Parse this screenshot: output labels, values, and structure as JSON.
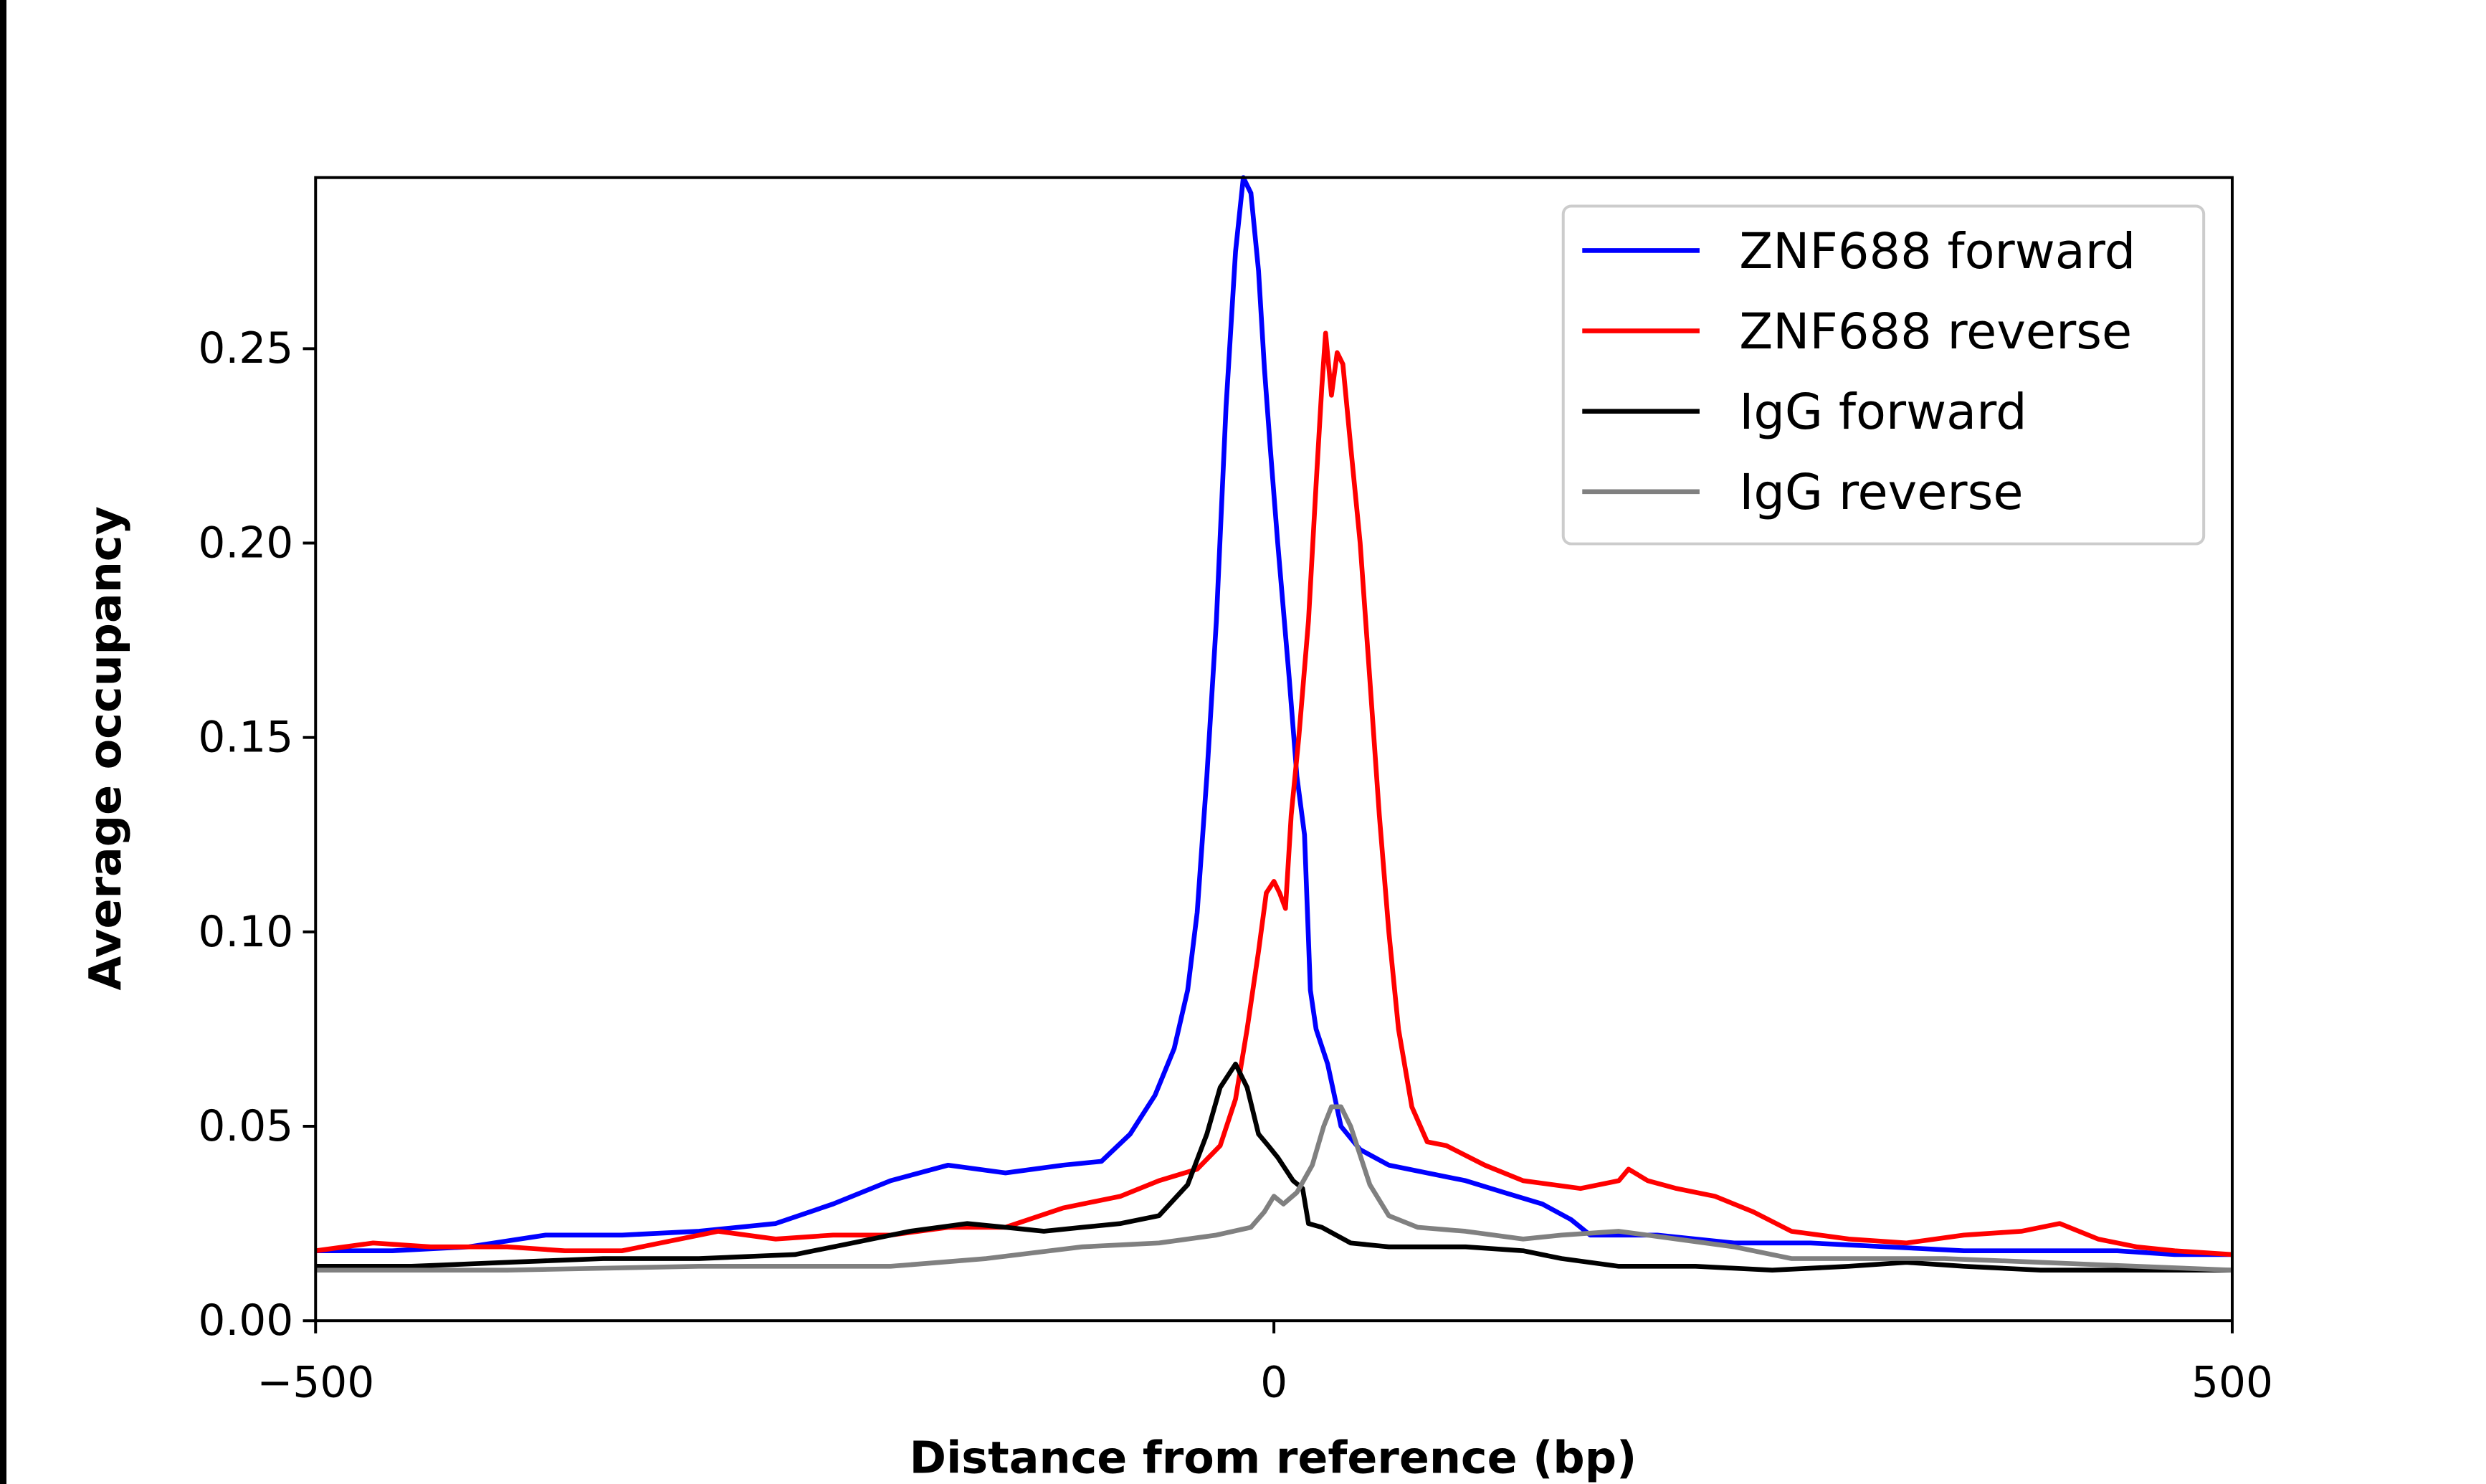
{
  "chart_data": {
    "type": "line",
    "xlabel": "Distance from reference (bp)",
    "ylabel": "Average occupancy",
    "xlim": [
      -500,
      500
    ],
    "ylim": [
      0,
      0.294
    ],
    "xticks": [
      "−500",
      "0",
      "500"
    ],
    "xtick_values": [
      -500,
      0,
      500
    ],
    "yticks": [
      "0.00",
      "0.05",
      "0.10",
      "0.15",
      "0.20",
      "0.25"
    ],
    "ytick_values": [
      0,
      0.05,
      0.1,
      0.15,
      0.2,
      0.25
    ],
    "grid": false,
    "legend_position": "top-right",
    "series": [
      {
        "name": "ZNF688 forward",
        "color": "#0000ff",
        "points": [
          [
            -500,
            0.018
          ],
          [
            -460,
            0.018
          ],
          [
            -420,
            0.019
          ],
          [
            -380,
            0.022
          ],
          [
            -340,
            0.022
          ],
          [
            -300,
            0.023
          ],
          [
            -260,
            0.025
          ],
          [
            -230,
            0.03
          ],
          [
            -200,
            0.036
          ],
          [
            -170,
            0.04
          ],
          [
            -140,
            0.038
          ],
          [
            -110,
            0.04
          ],
          [
            -90,
            0.041
          ],
          [
            -75,
            0.048
          ],
          [
            -62,
            0.058
          ],
          [
            -52,
            0.07
          ],
          [
            -45,
            0.085
          ],
          [
            -40,
            0.105
          ],
          [
            -35,
            0.14
          ],
          [
            -30,
            0.18
          ],
          [
            -25,
            0.235
          ],
          [
            -20,
            0.275
          ],
          [
            -16,
            0.294
          ],
          [
            -12,
            0.29
          ],
          [
            -8,
            0.27
          ],
          [
            -5,
            0.245
          ],
          [
            -2,
            0.225
          ],
          [
            2,
            0.2
          ],
          [
            8,
            0.165
          ],
          [
            12,
            0.14
          ],
          [
            16,
            0.125
          ],
          [
            19,
            0.085
          ],
          [
            22,
            0.075
          ],
          [
            28,
            0.066
          ],
          [
            35,
            0.05
          ],
          [
            45,
            0.044
          ],
          [
            60,
            0.04
          ],
          [
            80,
            0.038
          ],
          [
            100,
            0.036
          ],
          [
            120,
            0.033
          ],
          [
            140,
            0.03
          ],
          [
            155,
            0.026
          ],
          [
            165,
            0.022
          ],
          [
            200,
            0.022
          ],
          [
            240,
            0.02
          ],
          [
            280,
            0.02
          ],
          [
            320,
            0.019
          ],
          [
            360,
            0.018
          ],
          [
            400,
            0.018
          ],
          [
            440,
            0.018
          ],
          [
            470,
            0.017
          ],
          [
            500,
            0.017
          ]
        ]
      },
      {
        "name": "ZNF688 reverse",
        "color": "#ff0000",
        "points": [
          [
            -500,
            0.018
          ],
          [
            -470,
            0.02
          ],
          [
            -440,
            0.019
          ],
          [
            -400,
            0.019
          ],
          [
            -370,
            0.018
          ],
          [
            -340,
            0.018
          ],
          [
            -290,
            0.023
          ],
          [
            -260,
            0.021
          ],
          [
            -230,
            0.022
          ],
          [
            -200,
            0.022
          ],
          [
            -170,
            0.024
          ],
          [
            -140,
            0.024
          ],
          [
            -110,
            0.029
          ],
          [
            -80,
            0.032
          ],
          [
            -60,
            0.036
          ],
          [
            -40,
            0.039
          ],
          [
            -28,
            0.045
          ],
          [
            -20,
            0.057
          ],
          [
            -14,
            0.075
          ],
          [
            -8,
            0.095
          ],
          [
            -4,
            0.11
          ],
          [
            0,
            0.113
          ],
          [
            3,
            0.11
          ],
          [
            6,
            0.106
          ],
          [
            9,
            0.13
          ],
          [
            13,
            0.15
          ],
          [
            18,
            0.18
          ],
          [
            22,
            0.215
          ],
          [
            25,
            0.24
          ],
          [
            27,
            0.254
          ],
          [
            30,
            0.238
          ],
          [
            33,
            0.249
          ],
          [
            36,
            0.246
          ],
          [
            40,
            0.225
          ],
          [
            45,
            0.2
          ],
          [
            50,
            0.165
          ],
          [
            55,
            0.13
          ],
          [
            60,
            0.1
          ],
          [
            65,
            0.075
          ],
          [
            72,
            0.055
          ],
          [
            80,
            0.046
          ],
          [
            90,
            0.045
          ],
          [
            110,
            0.04
          ],
          [
            130,
            0.036
          ],
          [
            160,
            0.034
          ],
          [
            180,
            0.036
          ],
          [
            185,
            0.039
          ],
          [
            195,
            0.036
          ],
          [
            210,
            0.034
          ],
          [
            230,
            0.032
          ],
          [
            250,
            0.028
          ],
          [
            270,
            0.023
          ],
          [
            300,
            0.021
          ],
          [
            330,
            0.02
          ],
          [
            360,
            0.022
          ],
          [
            390,
            0.023
          ],
          [
            410,
            0.025
          ],
          [
            430,
            0.021
          ],
          [
            450,
            0.019
          ],
          [
            470,
            0.018
          ],
          [
            500,
            0.017
          ]
        ]
      },
      {
        "name": "IgG forward",
        "color": "#000000",
        "points": [
          [
            -500,
            0.014
          ],
          [
            -450,
            0.014
          ],
          [
            -400,
            0.015
          ],
          [
            -350,
            0.016
          ],
          [
            -300,
            0.016
          ],
          [
            -250,
            0.017
          ],
          [
            -220,
            0.02
          ],
          [
            -190,
            0.023
          ],
          [
            -160,
            0.025
          ],
          [
            -140,
            0.024
          ],
          [
            -120,
            0.023
          ],
          [
            -100,
            0.024
          ],
          [
            -80,
            0.025
          ],
          [
            -60,
            0.027
          ],
          [
            -45,
            0.035
          ],
          [
            -35,
            0.048
          ],
          [
            -28,
            0.06
          ],
          [
            -20,
            0.066
          ],
          [
            -14,
            0.06
          ],
          [
            -8,
            0.048
          ],
          [
            -3,
            0.045
          ],
          [
            2,
            0.042
          ],
          [
            10,
            0.036
          ],
          [
            15,
            0.034
          ],
          [
            18,
            0.025
          ],
          [
            25,
            0.024
          ],
          [
            40,
            0.02
          ],
          [
            60,
            0.019
          ],
          [
            100,
            0.019
          ],
          [
            130,
            0.018
          ],
          [
            150,
            0.016
          ],
          [
            180,
            0.014
          ],
          [
            220,
            0.014
          ],
          [
            260,
            0.013
          ],
          [
            300,
            0.014
          ],
          [
            330,
            0.015
          ],
          [
            360,
            0.014
          ],
          [
            400,
            0.013
          ],
          [
            450,
            0.013
          ],
          [
            500,
            0.013
          ]
        ]
      },
      {
        "name": "IgG reverse",
        "color": "#808080",
        "points": [
          [
            -500,
            0.013
          ],
          [
            -400,
            0.013
          ],
          [
            -300,
            0.014
          ],
          [
            -250,
            0.014
          ],
          [
            -200,
            0.014
          ],
          [
            -150,
            0.016
          ],
          [
            -100,
            0.019
          ],
          [
            -60,
            0.02
          ],
          [
            -30,
            0.022
          ],
          [
            -12,
            0.024
          ],
          [
            -5,
            0.028
          ],
          [
            0,
            0.032
          ],
          [
            5,
            0.03
          ],
          [
            12,
            0.033
          ],
          [
            20,
            0.04
          ],
          [
            26,
            0.05
          ],
          [
            30,
            0.055
          ],
          [
            35,
            0.055
          ],
          [
            40,
            0.05
          ],
          [
            50,
            0.035
          ],
          [
            60,
            0.027
          ],
          [
            75,
            0.024
          ],
          [
            100,
            0.023
          ],
          [
            130,
            0.021
          ],
          [
            150,
            0.022
          ],
          [
            180,
            0.023
          ],
          [
            210,
            0.021
          ],
          [
            240,
            0.019
          ],
          [
            270,
            0.016
          ],
          [
            300,
            0.016
          ],
          [
            350,
            0.016
          ],
          [
            400,
            0.015
          ],
          [
            450,
            0.014
          ],
          [
            500,
            0.013
          ]
        ]
      }
    ]
  }
}
